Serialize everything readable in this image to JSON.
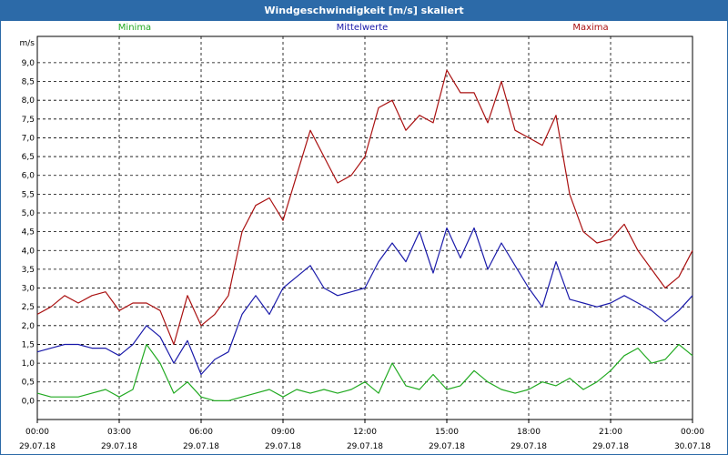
{
  "window": {
    "title": "Windgeschwindigkeit [m/s] skaliert"
  },
  "chart_data": {
    "type": "line",
    "title": "Windgeschwindigkeit [m/s] skaliert",
    "ylabel": "m/s",
    "ylim": [
      -0.5,
      9.7
    ],
    "xlim": [
      0,
      24
    ],
    "grid": true,
    "legend_placement": "top",
    "y_ticks": [
      "0,0",
      "0,5",
      "1,0",
      "1,5",
      "2,0",
      "2,5",
      "3,0",
      "3,5",
      "4,0",
      "4,5",
      "5,0",
      "5,5",
      "6,0",
      "6,5",
      "7,0",
      "7,5",
      "8,0",
      "8,5",
      "9,0"
    ],
    "x_ticks": [
      {
        "time": "00:00",
        "date": "29.07.18"
      },
      {
        "time": "03:00",
        "date": "29.07.18"
      },
      {
        "time": "06:00",
        "date": "29.07.18"
      },
      {
        "time": "09:00",
        "date": "29.07.18"
      },
      {
        "time": "12:00",
        "date": "29.07.18"
      },
      {
        "time": "15:00",
        "date": "29.07.18"
      },
      {
        "time": "18:00",
        "date": "29.07.18"
      },
      {
        "time": "21:00",
        "date": "29.07.18"
      },
      {
        "time": "00:00",
        "date": "30.07.18"
      }
    ],
    "x": [
      0,
      0.5,
      1,
      1.5,
      2,
      2.5,
      3,
      3.5,
      4,
      4.5,
      5,
      5.5,
      6,
      6.5,
      7,
      7.5,
      8,
      8.5,
      9,
      9.5,
      10,
      10.5,
      11,
      11.5,
      12,
      12.5,
      13,
      13.5,
      14,
      14.5,
      15,
      15.5,
      16,
      16.5,
      17,
      17.5,
      18,
      18.5,
      19,
      19.5,
      20,
      20.5,
      21,
      21.5,
      22,
      22.5,
      23,
      23.5,
      24
    ],
    "series": [
      {
        "name": "Minima",
        "color": "#22aa22",
        "values": [
          0.2,
          0.1,
          0.1,
          0.1,
          0.2,
          0.3,
          0.1,
          0.3,
          1.5,
          1.0,
          0.2,
          0.5,
          0.1,
          0.0,
          0.0,
          0.1,
          0.2,
          0.3,
          0.1,
          0.3,
          0.2,
          0.3,
          0.2,
          0.3,
          0.5,
          0.2,
          1.0,
          0.4,
          0.3,
          0.7,
          0.3,
          0.4,
          0.8,
          0.5,
          0.3,
          0.2,
          0.3,
          0.5,
          0.4,
          0.6,
          0.3,
          0.5,
          0.8,
          1.2,
          1.4,
          1.0,
          1.1,
          1.5,
          1.2
        ]
      },
      {
        "name": "Mittelwerte",
        "color": "#1a1aaa",
        "values": [
          1.3,
          1.4,
          1.5,
          1.5,
          1.4,
          1.4,
          1.2,
          1.5,
          2.0,
          1.7,
          1.0,
          1.6,
          0.7,
          1.1,
          1.3,
          2.3,
          2.8,
          2.3,
          3.0,
          3.3,
          3.6,
          3.0,
          2.8,
          2.9,
          3.0,
          3.7,
          4.2,
          3.7,
          4.5,
          3.4,
          4.6,
          3.8,
          4.6,
          3.5,
          4.2,
          3.6,
          3.0,
          2.5,
          3.7,
          2.7,
          2.6,
          2.5,
          2.6,
          2.8,
          2.6,
          2.4,
          2.1,
          2.4,
          2.8
        ]
      },
      {
        "name": "Maxima",
        "color": "#aa1111",
        "values": [
          2.3,
          2.5,
          2.8,
          2.6,
          2.8,
          2.9,
          2.4,
          2.6,
          2.6,
          2.4,
          1.5,
          2.8,
          2.0,
          2.3,
          2.8,
          4.5,
          5.2,
          5.4,
          4.8,
          6.0,
          7.2,
          6.5,
          5.8,
          6.0,
          6.5,
          7.8,
          8.0,
          7.2,
          7.6,
          7.4,
          8.8,
          8.2,
          8.2,
          7.4,
          8.5,
          7.2,
          7.0,
          6.8,
          7.6,
          5.5,
          4.5,
          4.2,
          4.3,
          4.7,
          4.0,
          3.5,
          3.0,
          3.3,
          4.0
        ]
      }
    ]
  }
}
